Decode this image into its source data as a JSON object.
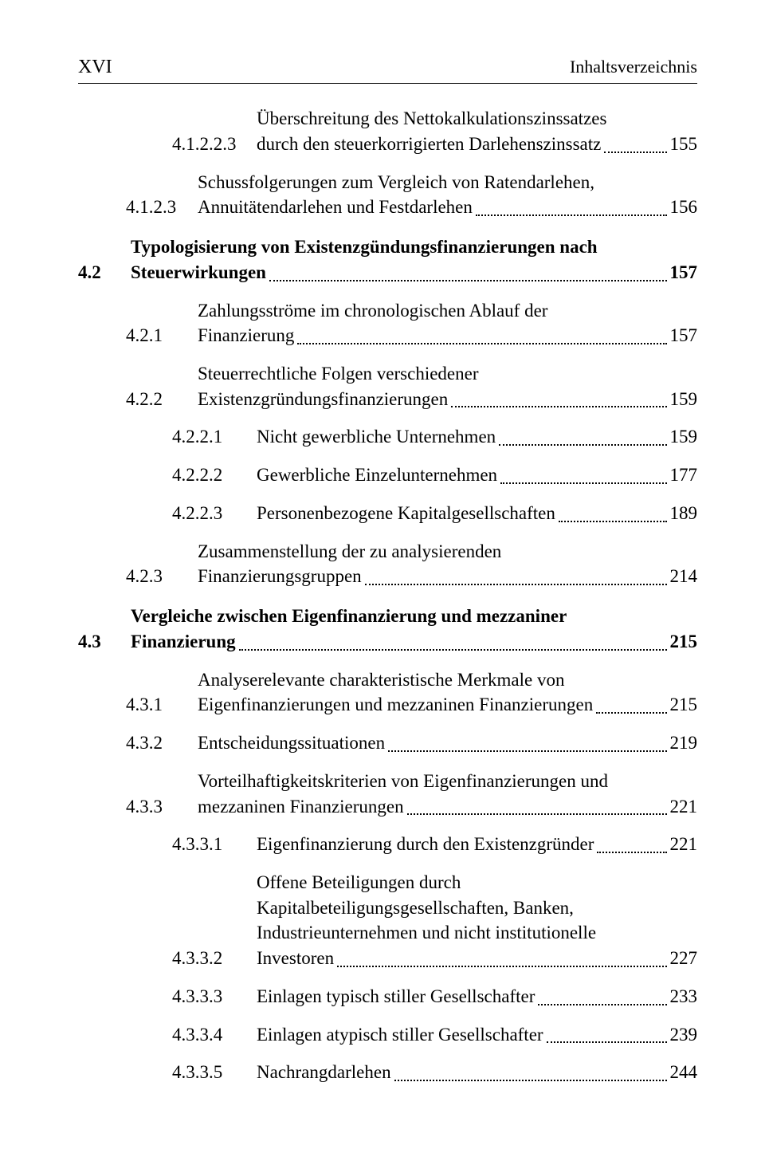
{
  "header": {
    "left": "XVI",
    "right": "Inhaltsverzeichnis"
  },
  "entries": [
    {
      "level": 3,
      "num": "4.1.2.2.3",
      "lines": [
        "Überschreitung des Nettokalkulationszinssatzes"
      ],
      "last": "durch den steuerkorrigierten Darlehenszinssatz",
      "page": "155",
      "bold": false,
      "gapTop": false,
      "leaderShort": true
    },
    {
      "level": 2,
      "num": "4.1.2.3",
      "lines": [
        "Schussfolgerungen zum Vergleich von Ratendarlehen,"
      ],
      "last": "Annuitätendarlehen und Festdarlehen",
      "page": "156",
      "bold": false,
      "gapTop": false
    },
    {
      "level": 1,
      "num": "4.2",
      "lines": [
        "Typologisierung von Existenzgündungsfinanzierungen nach"
      ],
      "last": "Steuerwirkungen",
      "page": "157",
      "bold": true,
      "gapTop": false
    },
    {
      "level": 2,
      "num": "4.2.1",
      "lines": [
        "Zahlungsströme im chronologischen Ablauf der"
      ],
      "last": "Finanzierung",
      "page": "157",
      "bold": false,
      "gapTop": false
    },
    {
      "level": 2,
      "num": "4.2.2",
      "lines": [
        "Steuerrechtliche Folgen verschiedener"
      ],
      "last": "Existenzgründungsfinanzierungen",
      "page": "159",
      "bold": false,
      "gapTop": false
    },
    {
      "level": 3,
      "num": "4.2.2.1",
      "lines": [],
      "last": "Nicht gewerbliche Unternehmen",
      "page": "159",
      "bold": false,
      "gapTop": false
    },
    {
      "level": 3,
      "num": "4.2.2.2",
      "lines": [],
      "last": "Gewerbliche Einzelunternehmen",
      "page": "177",
      "bold": false,
      "gapTop": false
    },
    {
      "level": 3,
      "num": "4.2.2.3",
      "lines": [],
      "last": "Personenbezogene Kapitalgesellschaften",
      "page": "189",
      "bold": false,
      "gapTop": false
    },
    {
      "level": 2,
      "num": "4.2.3",
      "lines": [
        "Zusammenstellung der zu analysierenden"
      ],
      "last": "Finanzierungsgruppen",
      "page": "214",
      "bold": false,
      "gapTop": false
    },
    {
      "level": 1,
      "num": "4.3",
      "lines": [
        "Vergleiche zwischen Eigenfinanzierung und mezzaniner"
      ],
      "last": "Finanzierung",
      "page": "215",
      "bold": true,
      "gapTop": false
    },
    {
      "level": 2,
      "num": "4.3.1",
      "lines": [
        "Analyserelevante charakteristische Merkmale von"
      ],
      "last": "Eigenfinanzierungen und mezzaninen Finanzierungen",
      "page": "215",
      "bold": false,
      "gapTop": false
    },
    {
      "level": 2,
      "num": "4.3.2",
      "lines": [],
      "last": "Entscheidungssituationen",
      "page": "219",
      "bold": false,
      "gapTop": false
    },
    {
      "level": 2,
      "num": "4.3.3",
      "lines": [
        "Vorteilhaftigkeitskriterien von Eigenfinanzierungen und"
      ],
      "last": "mezzaninen Finanzierungen",
      "page": "221",
      "bold": false,
      "gapTop": false
    },
    {
      "level": 3,
      "num": "4.3.3.1",
      "lines": [],
      "last": "Eigenfinanzierung durch den Existenzgründer",
      "page": "221",
      "bold": false,
      "gapTop": false
    },
    {
      "level": 3,
      "num": "4.3.3.2",
      "lines": [
        "Offene Beteiligungen durch",
        "Kapitalbeteiligungsgesellschaften, Banken,",
        "Industrieunternehmen und nicht institutionelle"
      ],
      "last": "Investoren",
      "page": "227",
      "bold": false,
      "gapTop": false
    },
    {
      "level": 3,
      "num": "4.3.3.3",
      "lines": [],
      "last": "Einlagen typisch stiller Gesellschafter",
      "page": "233",
      "bold": false,
      "gapTop": false
    },
    {
      "level": 3,
      "num": "4.3.3.4",
      "lines": [],
      "last": "Einlagen atypisch stiller Gesellschafter",
      "page": "239",
      "bold": false,
      "gapTop": false
    },
    {
      "level": 3,
      "num": "4.3.3.5",
      "lines": [],
      "last": "Nachrangdarlehen",
      "page": "244",
      "bold": false,
      "gapTop": false
    }
  ]
}
